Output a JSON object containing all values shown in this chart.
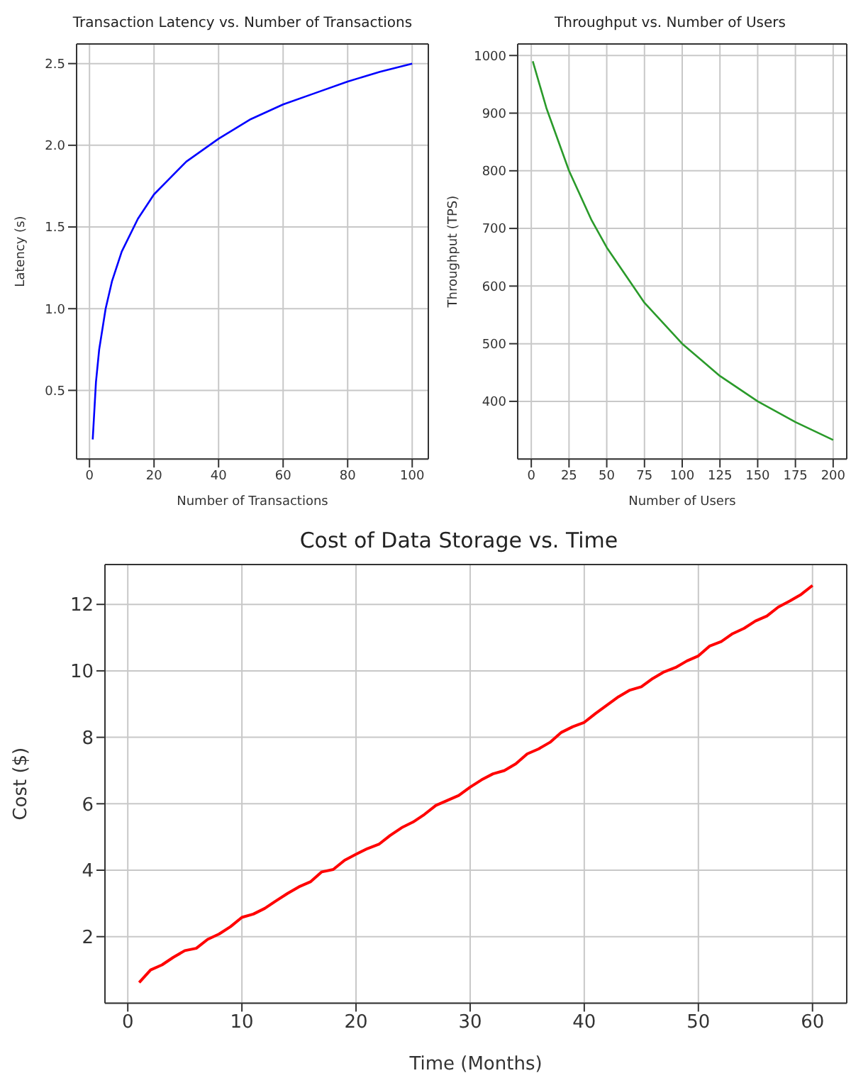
{
  "chart_data": [
    {
      "type": "line",
      "title": "Transaction Latency vs. Number of Transactions",
      "xlabel": "Number of Transactions",
      "ylabel": "Latency (s)",
      "x": [
        1,
        2,
        3,
        5,
        7,
        10,
        15,
        20,
        30,
        40,
        50,
        60,
        70,
        80,
        90,
        100
      ],
      "series": [
        {
          "color": "#0000ff",
          "values": [
            0.2,
            0.55,
            0.75,
            1.0,
            1.17,
            1.35,
            1.55,
            1.7,
            1.9,
            2.04,
            2.16,
            2.25,
            2.32,
            2.39,
            2.45,
            2.5
          ]
        }
      ],
      "xlim": [
        -4,
        105
      ],
      "xticks": [
        0,
        20,
        40,
        60,
        80,
        100
      ],
      "ylim": [
        0.08,
        2.62
      ],
      "yticks": [
        {
          "value": 0.5,
          "label": "0.5"
        },
        {
          "value": 1,
          "label": "1.0"
        },
        {
          "value": 1.5,
          "label": "1.5"
        },
        {
          "value": 2,
          "label": "2.0"
        },
        {
          "value": 2.5,
          "label": "2.5"
        }
      ],
      "grid": true,
      "marker": "none",
      "line_style": "solid",
      "legend": false
    },
    {
      "type": "line",
      "title": "Throughput vs. Number of Users",
      "xlabel": "Number of Users",
      "ylabel": "Throughput (TPS)",
      "x": [
        1,
        10,
        25,
        40,
        50,
        75,
        100,
        125,
        150,
        175,
        200
      ],
      "series": [
        {
          "color": "#2a9a2a",
          "values": [
            990,
            909,
            800,
            714,
            667,
            571,
            500,
            444,
            400,
            364,
            333
          ]
        }
      ],
      "xlim": [
        -9,
        209
      ],
      "xticks": [
        0,
        25,
        50,
        75,
        100,
        125,
        150,
        175,
        200
      ],
      "ylim": [
        300,
        1020
      ],
      "yticks": [
        400,
        500,
        600,
        700,
        800,
        900,
        1000
      ],
      "grid": true,
      "marker": "none",
      "line_style": "solid",
      "legend": false
    },
    {
      "type": "line",
      "title": "Cost of Data Storage vs. Time",
      "xlabel": "Time (Months)",
      "ylabel": "Cost ($)",
      "x": [
        1,
        2,
        3,
        4,
        5,
        6,
        7,
        8,
        9,
        10,
        11,
        12,
        13,
        14,
        15,
        16,
        17,
        18,
        19,
        20,
        21,
        22,
        23,
        24,
        25,
        26,
        27,
        28,
        29,
        30,
        31,
        32,
        33,
        34,
        35,
        36,
        37,
        38,
        39,
        40,
        41,
        42,
        43,
        44,
        45,
        46,
        47,
        48,
        49,
        50,
        51,
        52,
        53,
        54,
        55,
        56,
        57,
        58,
        59,
        60
      ],
      "series": [
        {
          "color": "#ff0000",
          "values": [
            0.62,
            1.0,
            1.15,
            1.38,
            1.58,
            1.65,
            1.92,
            2.08,
            2.3,
            2.58,
            2.68,
            2.85,
            3.08,
            3.3,
            3.5,
            3.65,
            3.95,
            4.02,
            4.3,
            4.48,
            4.65,
            4.78,
            5.05,
            5.28,
            5.45,
            5.68,
            5.95,
            6.1,
            6.25,
            6.5,
            6.72,
            6.9,
            7.0,
            7.2,
            7.5,
            7.65,
            7.85,
            8.15,
            8.32,
            8.45,
            8.72,
            8.97,
            9.22,
            9.42,
            9.52,
            9.77,
            9.97,
            10.1,
            10.3,
            10.45,
            10.75,
            10.88,
            11.12,
            11.28,
            11.5,
            11.65,
            11.92,
            12.1,
            12.3,
            12.57
          ]
        }
      ],
      "xlim": [
        -2,
        63
      ],
      "xticks": [
        0,
        10,
        20,
        30,
        40,
        50,
        60
      ],
      "ylim": [
        0,
        13.2
      ],
      "yticks": [
        2,
        4,
        6,
        8,
        10,
        12
      ],
      "grid": true,
      "marker": "none",
      "line_style": "solid",
      "legend": false
    }
  ]
}
